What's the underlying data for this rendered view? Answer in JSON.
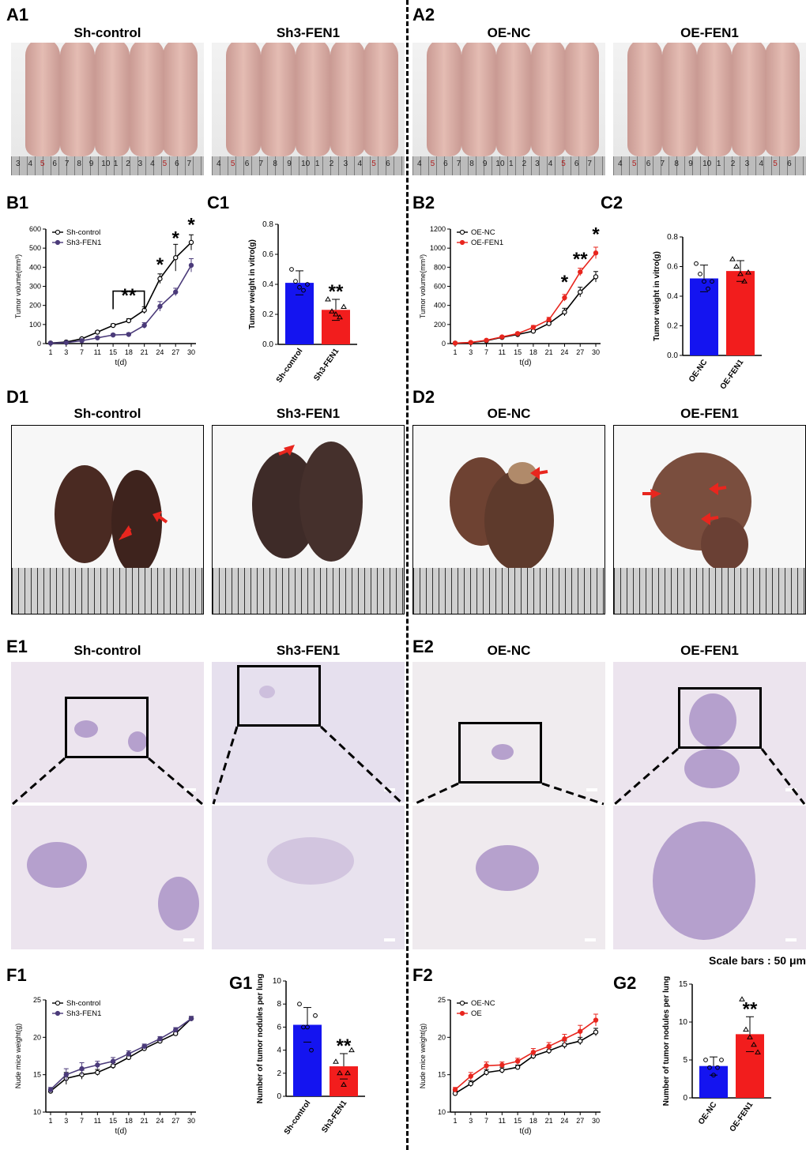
{
  "labels": {
    "A1": "A1",
    "A2": "A2",
    "B1": "B1",
    "C1": "C1",
    "B2": "B2",
    "C2": "C2",
    "D1": "D1",
    "D2": "D2",
    "E1": "E1",
    "E2": "E2",
    "F1": "F1",
    "G1": "G1",
    "F2": "F2",
    "G2": "G2"
  },
  "titles": {
    "sh_control": "Sh-control",
    "sh3_fen1": "Sh3-FEN1",
    "oe_nc": "OE-NC",
    "oe_fen1": "OE-FEN1"
  },
  "scale_note": "Scale bars : 50 μm",
  "ruler_numbers": {
    "a1_left": [
      "3",
      "4",
      "5",
      "6",
      "7",
      "8",
      "9",
      "10",
      "1",
      "2",
      "3",
      "4",
      "5",
      "6",
      "7"
    ],
    "a1_right": [
      "4",
      "5",
      "6",
      "7",
      "8",
      "9",
      "10",
      "1",
      "2",
      "3",
      "4",
      "5",
      "6"
    ],
    "a2_left": [
      "4",
      "5",
      "6",
      "7",
      "8",
      "9",
      "10",
      "1",
      "2",
      "3",
      "4",
      "5",
      "6",
      "7"
    ],
    "a2_right": [
      "4",
      "5",
      "6",
      "7",
      "8",
      "9",
      "10",
      "1",
      "2",
      "3",
      "4",
      "5",
      "6"
    ]
  },
  "colors": {
    "control": "#000000",
    "sh3": "#4b3b7a",
    "oe": "#e8261e",
    "bar_blue": "#1414f0",
    "bar_red": "#f21d1d"
  },
  "chart_data": [
    {
      "id": "B1",
      "type": "line",
      "xlabel": "t(d)",
      "ylabel": "Tumor volume(mm³)",
      "x": [
        1,
        3,
        7,
        11,
        15,
        18,
        21,
        24,
        27,
        30
      ],
      "ylim": [
        0,
        600
      ],
      "yticks": [
        0,
        100,
        200,
        300,
        400,
        500,
        600
      ],
      "series": [
        {
          "name": "Sh-control",
          "values": [
            3,
            8,
            25,
            60,
            95,
            120,
            175,
            340,
            450,
            530
          ],
          "err": [
            1,
            2,
            4,
            6,
            8,
            10,
            18,
            25,
            70,
            40
          ]
        },
        {
          "name": "Sh3-FEN1",
          "values": [
            2,
            5,
            15,
            30,
            45,
            48,
            95,
            195,
            270,
            410
          ],
          "err": [
            1,
            2,
            3,
            5,
            6,
            8,
            15,
            25,
            20,
            35
          ]
        }
      ],
      "annotations": [
        {
          "text": "**",
          "x": 18,
          "y": 220
        },
        {
          "text": "*",
          "x": 24,
          "y": 380
        },
        {
          "text": "*",
          "x": 27,
          "y": 520
        },
        {
          "text": "*",
          "x": 30,
          "y": 590
        }
      ]
    },
    {
      "id": "C1",
      "type": "bar",
      "ylabel": "Tumor weight in vitro(g)",
      "categories": [
        "Sh-control",
        "Sh3-FEN1"
      ],
      "values": [
        0.41,
        0.23
      ],
      "err": [
        0.08,
        0.07
      ],
      "ylim": [
        0,
        0.8
      ],
      "yticks": [
        "0.0",
        "0.2",
        "0.4",
        "0.6",
        "0.8"
      ],
      "points": [
        [
          0.5,
          0.42,
          0.38,
          0.36,
          0.4
        ],
        [
          0.3,
          0.22,
          0.2,
          0.18,
          0.25
        ]
      ],
      "annotations": [
        {
          "text": "**",
          "category": 1
        }
      ]
    },
    {
      "id": "B2",
      "type": "line",
      "xlabel": "t(d)",
      "ylabel": "Tumor volume(mm³)",
      "x": [
        1,
        3,
        7,
        11,
        15,
        18,
        21,
        24,
        27,
        30
      ],
      "ylim": [
        0,
        1200
      ],
      "yticks": [
        0,
        200,
        400,
        600,
        800,
        1000,
        1200
      ],
      "series": [
        {
          "name": "OE-NC",
          "values": [
            5,
            10,
            30,
            65,
            95,
            130,
            210,
            330,
            540,
            700
          ],
          "err": [
            2,
            3,
            5,
            8,
            10,
            15,
            20,
            40,
            50,
            55
          ]
        },
        {
          "name": "OE-FEN1",
          "values": [
            5,
            12,
            35,
            70,
            105,
            170,
            250,
            480,
            750,
            950
          ],
          "err": [
            2,
            3,
            5,
            8,
            12,
            20,
            25,
            35,
            40,
            60
          ]
        }
      ],
      "annotations": [
        {
          "text": "*",
          "x": 24,
          "y": 580
        },
        {
          "text": "**",
          "x": 27,
          "y": 820
        },
        {
          "text": "*",
          "x": 30,
          "y": 1080
        }
      ]
    },
    {
      "id": "C2",
      "type": "bar",
      "ylabel": "Tumor weight in vitro(g)",
      "categories": [
        "OE-NC",
        "OE-FEN1"
      ],
      "values": [
        0.52,
        0.57
      ],
      "err": [
        0.09,
        0.07
      ],
      "ylim": [
        0,
        0.8
      ],
      "yticks": [
        "0.0",
        "0.2",
        "0.4",
        "0.6",
        "0.8"
      ],
      "points": [
        [
          0.62,
          0.55,
          0.5,
          0.45,
          0.5
        ],
        [
          0.65,
          0.6,
          0.55,
          0.5,
          0.56
        ]
      ],
      "annotations": []
    },
    {
      "id": "F1",
      "type": "line",
      "xlabel": "t(d)",
      "ylabel": "Nude mice weight(g)",
      "x": [
        1,
        3,
        7,
        11,
        15,
        18,
        21,
        24,
        27,
        30
      ],
      "ylim": [
        10,
        25
      ],
      "yticks": [
        10,
        15,
        20,
        25
      ],
      "series": [
        {
          "name": "Sh-control",
          "values": [
            12.8,
            14.5,
            15.0,
            15.3,
            16.2,
            17.3,
            18.5,
            19.5,
            20.5,
            22.5
          ],
          "err": [
            0.3,
            0.8,
            0.6,
            0.4,
            0.4,
            0.3,
            0.3,
            0.3,
            0.3,
            0.3
          ]
        },
        {
          "name": "Sh3-FEN1",
          "values": [
            13.0,
            15.0,
            15.8,
            16.3,
            16.8,
            17.8,
            18.8,
            19.8,
            21.0,
            22.5
          ],
          "err": [
            0.3,
            0.8,
            0.8,
            0.5,
            0.5,
            0.4,
            0.3,
            0.3,
            0.3,
            0.3
          ]
        }
      ],
      "annotations": []
    },
    {
      "id": "G1",
      "type": "bar",
      "ylabel": "Number of tumor nodules per lung",
      "categories": [
        "Sh-control",
        "Sh3-FEN1"
      ],
      "values": [
        6.2,
        2.6
      ],
      "err": [
        1.5,
        1.1
      ],
      "ylim": [
        0,
        10
      ],
      "yticks": [
        "0",
        "2",
        "4",
        "6",
        "8",
        "10"
      ],
      "points": [
        [
          8,
          6,
          6,
          4,
          7
        ],
        [
          3,
          2,
          1,
          2,
          4
        ]
      ],
      "annotations": [
        {
          "text": "**",
          "category": 1
        }
      ]
    },
    {
      "id": "F2",
      "type": "line",
      "xlabel": "t(d)",
      "ylabel": "Nude mice weight(g)",
      "x": [
        1,
        3,
        7,
        11,
        15,
        18,
        21,
        24,
        27,
        30
      ],
      "ylim": [
        10,
        25
      ],
      "yticks": [
        10,
        15,
        20,
        25
      ],
      "series": [
        {
          "name": "OE-NC",
          "values": [
            12.5,
            13.8,
            15.3,
            15.6,
            16.0,
            17.5,
            18.2,
            19.0,
            19.5,
            20.7
          ],
          "err": [
            0.3,
            0.4,
            0.4,
            0.4,
            0.3,
            0.4,
            0.4,
            0.5,
            0.5,
            0.5
          ]
        },
        {
          "name": "OE",
          "values": [
            13.0,
            14.8,
            16.2,
            16.3,
            16.8,
            18.0,
            18.8,
            19.8,
            20.8,
            22.3
          ],
          "err": [
            0.3,
            0.5,
            0.5,
            0.4,
            0.4,
            0.5,
            0.5,
            0.6,
            0.8,
            0.8
          ]
        }
      ],
      "annotations": []
    },
    {
      "id": "G2",
      "type": "bar",
      "ylabel": "Number of tumor nodules per lung",
      "categories": [
        "OE-NC",
        "OE-FEN1"
      ],
      "values": [
        4.2,
        8.4
      ],
      "err": [
        1.2,
        2.3
      ],
      "ylim": [
        0,
        15
      ],
      "yticks": [
        "0",
        "5",
        "10",
        "15"
      ],
      "points": [
        [
          5,
          4,
          3,
          4,
          5
        ],
        [
          13,
          9,
          8,
          7,
          6
        ]
      ],
      "annotations": [
        {
          "text": "**",
          "category": 1
        }
      ]
    }
  ]
}
